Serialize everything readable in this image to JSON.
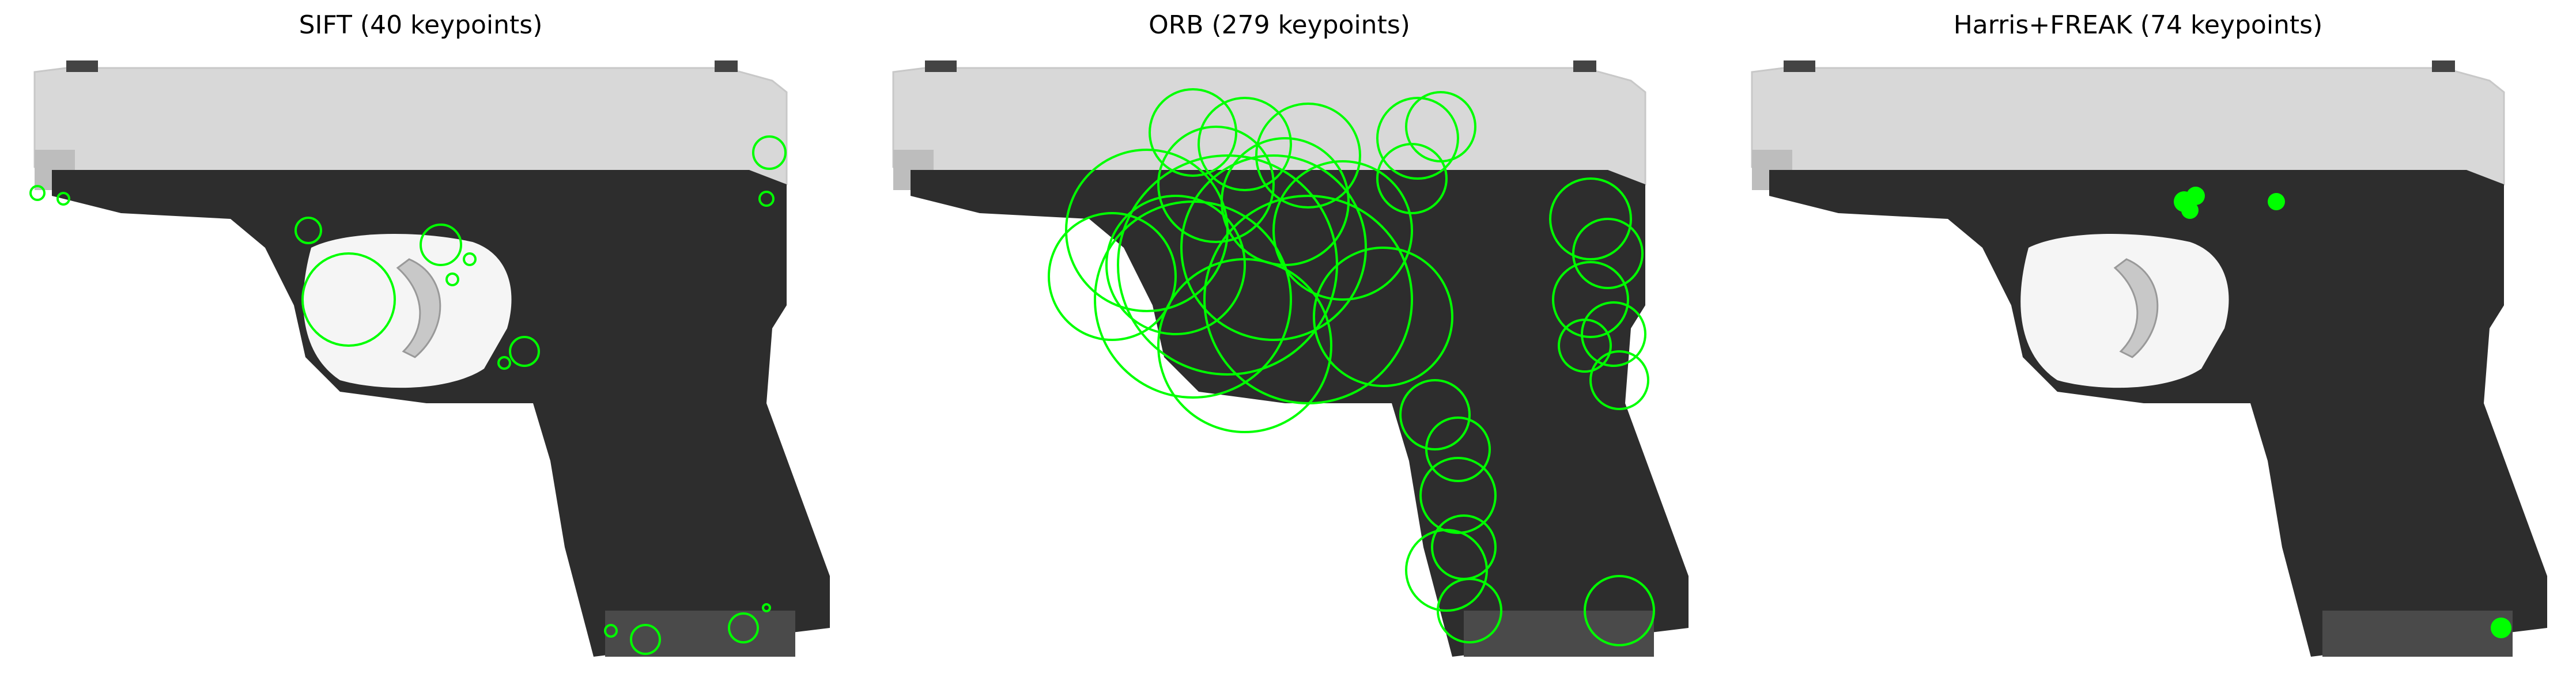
{
  "figure": {
    "panels": [
      {
        "id": "sift",
        "title": "SIFT (40 keypoints)",
        "keypoint_color": "#00ff00",
        "render_mode": "rich"
      },
      {
        "id": "orb",
        "title": "ORB (279 keypoints)",
        "keypoint_color": "#00ff00",
        "render_mode": "rich"
      },
      {
        "id": "harris_freak",
        "title": "Harris+FREAK (74 keypoints)",
        "keypoint_color": "#00ff00",
        "render_mode": "dots"
      }
    ]
  },
  "colors": {
    "background": "#ffffff",
    "slide": "#d9d9d9",
    "frame": "#2d2d2d",
    "keypoint": "#00ff00"
  }
}
